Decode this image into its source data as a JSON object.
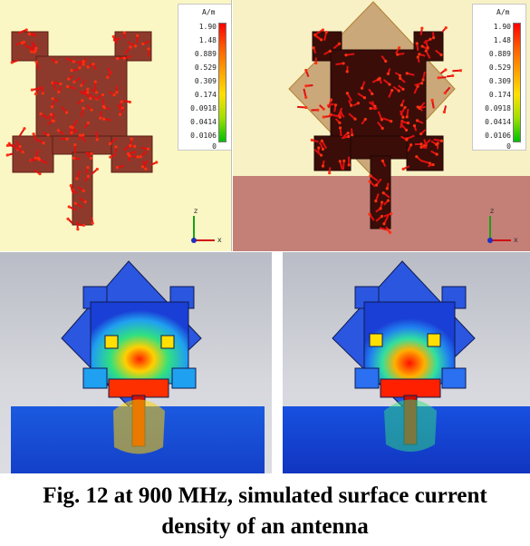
{
  "legend": {
    "unit": "A/m",
    "ticks": [
      "1.90",
      "1.48",
      "0.889",
      "0.529",
      "0.309",
      "0.174",
      "0.0918",
      "0.0414",
      "0.0106",
      "0"
    ]
  },
  "axes": {
    "x": "x",
    "z": "z"
  },
  "caption": {
    "line1": "Fig. 12 at 900 MHz, simulated surface current",
    "line2": "density of an antenna"
  },
  "colors": {
    "copper": "#8d3a2c",
    "arrow": "#e01010",
    "substrate_overlay": "#a56b3d",
    "background_yellow": "#fbf7c4",
    "ground_red": "#c47f77",
    "field_blue": "#1a3fd6"
  }
}
